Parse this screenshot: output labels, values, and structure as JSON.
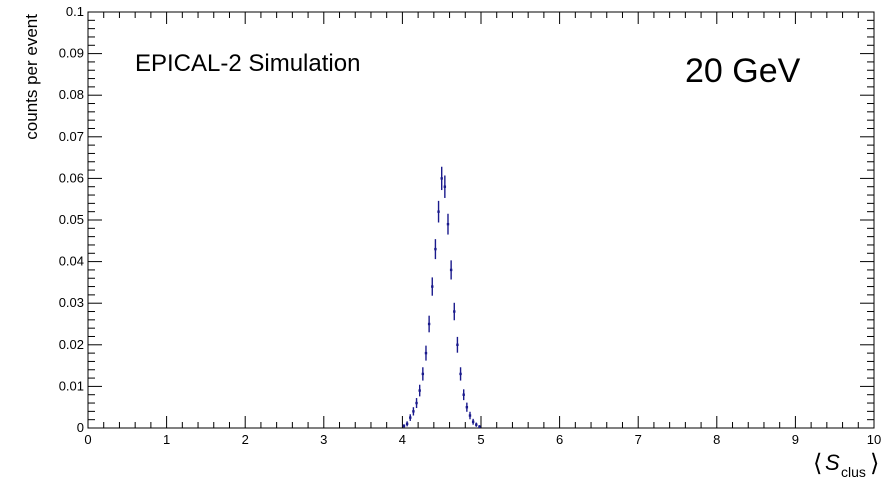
{
  "chart_data": {
    "type": "scatter",
    "title": "",
    "annotations": [
      "EPICAL-2 Simulation",
      "20 GeV"
    ],
    "xlabel": "S",
    "xlabel_subscript": "clus",
    "xlabel_brackets": [
      "⟨",
      "⟩"
    ],
    "ylabel": "counts per event",
    "xlim": [
      0,
      10
    ],
    "ylim": [
      0,
      0.1
    ],
    "x_ticks": [
      "0",
      "1",
      "2",
      "3",
      "4",
      "5",
      "6",
      "7",
      "8",
      "9",
      "10"
    ],
    "y_ticks": [
      "0",
      "0.01",
      "0.02",
      "0.03",
      "0.04",
      "0.05",
      "0.06",
      "0.07",
      "0.08",
      "0.09",
      "0.1"
    ],
    "grid": false,
    "legend": "none",
    "marker_color": "#1a1a8c",
    "series": [
      {
        "x": [
          4.02,
          4.06,
          4.1,
          4.14,
          4.18,
          4.22,
          4.26,
          4.3,
          4.34,
          4.38,
          4.42,
          4.46,
          4.5,
          4.54,
          4.58,
          4.62,
          4.66,
          4.7,
          4.74,
          4.78,
          4.82,
          4.86,
          4.9,
          4.94,
          4.98
        ],
        "y": [
          0.0005,
          0.001,
          0.0025,
          0.004,
          0.006,
          0.009,
          0.013,
          0.018,
          0.025,
          0.034,
          0.043,
          0.052,
          0.06,
          0.058,
          0.049,
          0.038,
          0.028,
          0.02,
          0.013,
          0.008,
          0.005,
          0.003,
          0.0015,
          0.0008,
          0.0003
        ],
        "yerr": [
          0.0004,
          0.0006,
          0.0008,
          0.001,
          0.0012,
          0.0014,
          0.0016,
          0.0018,
          0.002,
          0.0022,
          0.0024,
          0.0026,
          0.0028,
          0.0027,
          0.0025,
          0.0023,
          0.0021,
          0.0019,
          0.0016,
          0.0013,
          0.0011,
          0.0009,
          0.0007,
          0.0005,
          0.0004
        ]
      }
    ]
  }
}
